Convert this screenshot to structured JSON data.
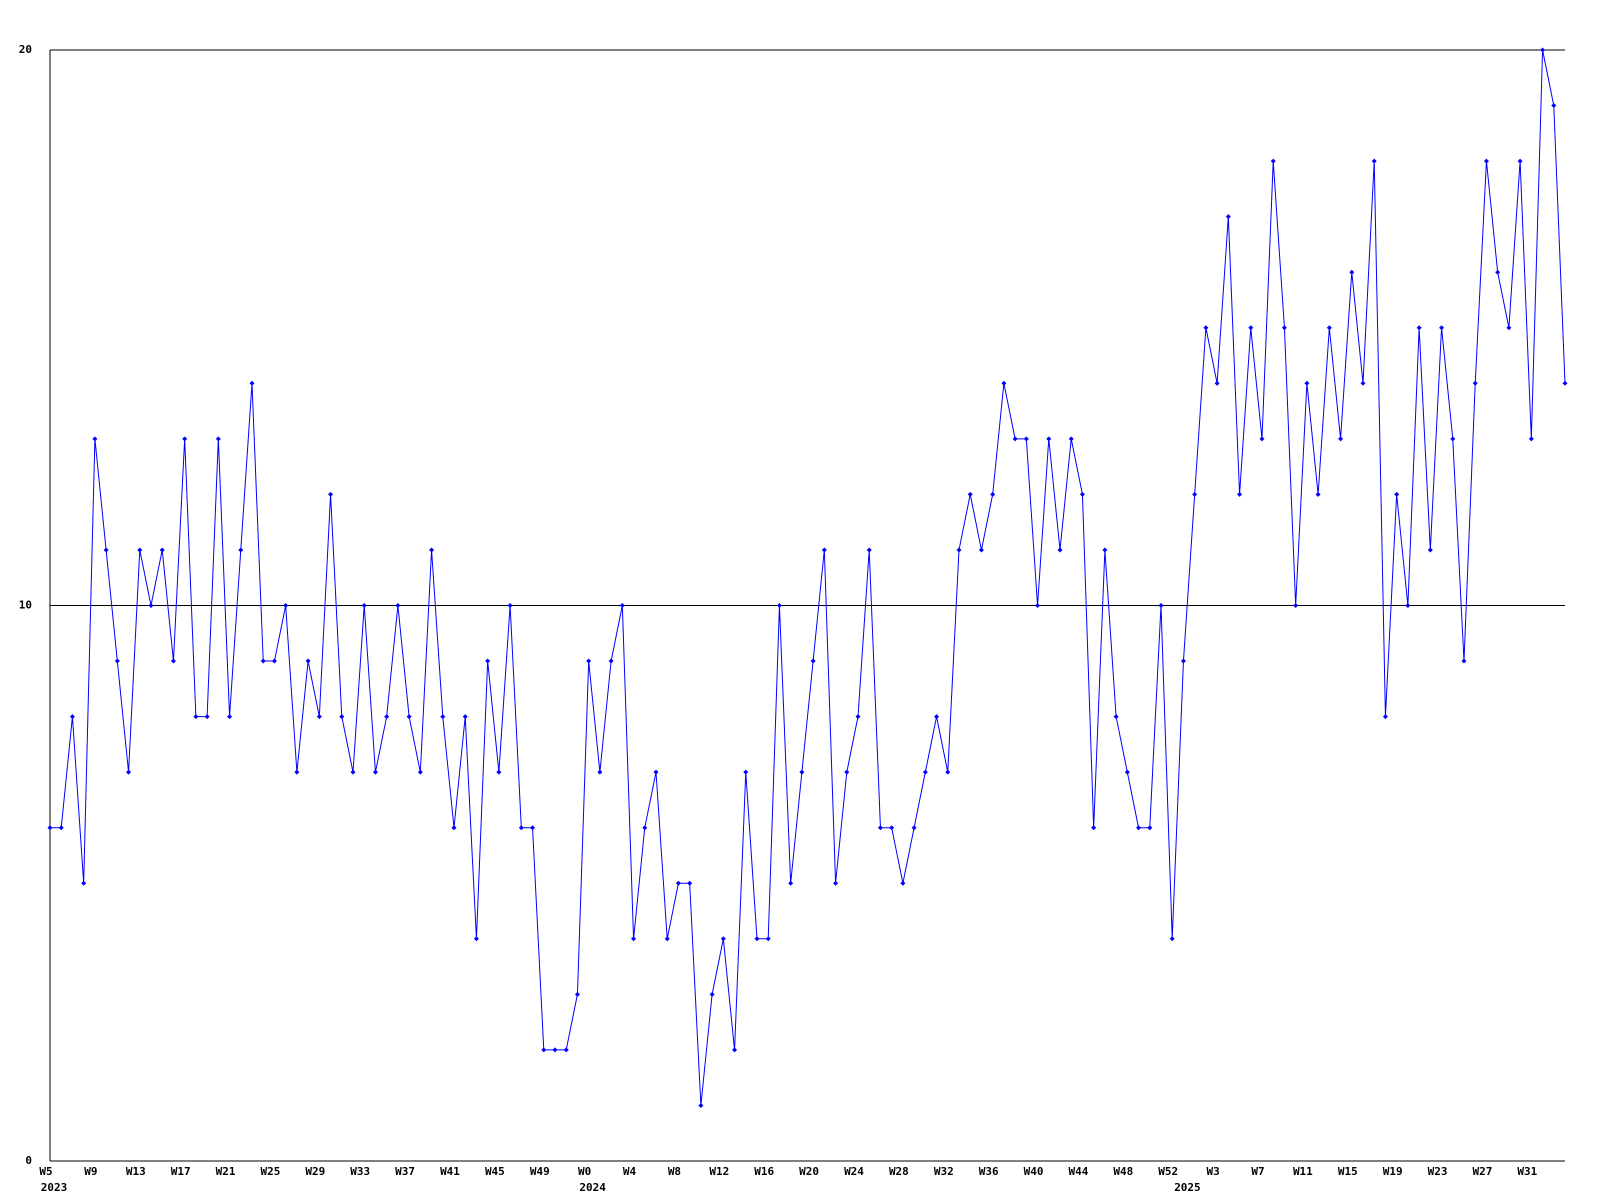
{
  "chart_data": {
    "type": "line",
    "categories": [
      "W5",
      null,
      null,
      null,
      "W9",
      null,
      null,
      null,
      "W13",
      null,
      null,
      null,
      "W17",
      null,
      null,
      null,
      "W21",
      null,
      null,
      null,
      "W25",
      null,
      null,
      null,
      "W29",
      null,
      null,
      null,
      "W33",
      null,
      null,
      null,
      "W37",
      null,
      null,
      null,
      "W41",
      null,
      null,
      null,
      "W45",
      null,
      null,
      null,
      "W49",
      null,
      null,
      null,
      "W0",
      null,
      null,
      null,
      "W4",
      null,
      null,
      null,
      "W8",
      null,
      null,
      null,
      "W12",
      null,
      null,
      null,
      "W16",
      null,
      null,
      null,
      "W20",
      null,
      null,
      null,
      "W24",
      null,
      null,
      null,
      "W28",
      null,
      null,
      null,
      "W32",
      null,
      null,
      null,
      "W36",
      null,
      null,
      null,
      "W40",
      null,
      null,
      null,
      "W44",
      null,
      null,
      null,
      "W48",
      null,
      null,
      null,
      "W52",
      null,
      null,
      null,
      "W3",
      null,
      null,
      null,
      "W7",
      null,
      null,
      null,
      "W11",
      null,
      null,
      null,
      "W15",
      null,
      null,
      null,
      "W19",
      null,
      null,
      null,
      "W23",
      null,
      null,
      null,
      "W27",
      null,
      null,
      null,
      "W31",
      null,
      null,
      null
    ],
    "year_labels": [
      "2023",
      null,
      null,
      null,
      null,
      null,
      null,
      null,
      null,
      null,
      null,
      null,
      null,
      null,
      null,
      null,
      null,
      null,
      null,
      null,
      null,
      null,
      null,
      null,
      null,
      null,
      null,
      null,
      null,
      null,
      null,
      null,
      null,
      null,
      null,
      null,
      null,
      null,
      null,
      null,
      null,
      null,
      null,
      null,
      null,
      null,
      null,
      null,
      "2024",
      null,
      null,
      null,
      null,
      null,
      null,
      null,
      null,
      null,
      null,
      null,
      null,
      null,
      null,
      null,
      null,
      null,
      null,
      null,
      null,
      null,
      null,
      null,
      null,
      null,
      null,
      null,
      null,
      null,
      null,
      null,
      null,
      null,
      null,
      null,
      null,
      null,
      null,
      null,
      null,
      null,
      null,
      null,
      null,
      null,
      null,
      null,
      null,
      null,
      null,
      null,
      null,
      "2025",
      null,
      null,
      null,
      null,
      null,
      null,
      null,
      null,
      null,
      null,
      null,
      null,
      null,
      null,
      null,
      null,
      null,
      null,
      null,
      null,
      null,
      null,
      null,
      null,
      null,
      null,
      null,
      null,
      null,
      null,
      null,
      null,
      null,
      null
    ],
    "values": [
      6,
      6,
      8,
      5,
      13,
      11,
      9,
      7,
      11,
      10,
      11,
      9,
      13,
      8,
      8,
      13,
      8,
      11,
      14,
      9,
      9,
      10,
      7,
      9,
      8,
      12,
      8,
      7,
      10,
      7,
      8,
      10,
      8,
      7,
      11,
      8,
      6,
      8,
      4,
      9,
      7,
      10,
      6,
      6,
      2,
      2,
      2,
      3,
      9,
      7,
      9,
      10,
      4,
      6,
      7,
      4,
      5,
      5,
      1,
      3,
      4,
      2,
      7,
      4,
      4,
      10,
      5,
      7,
      9,
      11,
      5,
      7,
      8,
      11,
      6,
      6,
      5,
      6,
      7,
      8,
      7,
      11,
      12,
      11,
      12,
      14,
      13,
      13,
      10,
      13,
      11,
      13,
      12,
      6,
      11,
      8,
      7,
      6,
      6,
      10,
      4,
      9,
      12,
      15,
      14,
      17,
      12,
      15,
      13,
      18,
      15,
      10,
      14,
      12,
      15,
      13,
      16,
      14,
      18,
      8,
      12,
      10,
      15,
      11,
      15,
      13,
      9,
      14,
      18,
      16,
      15,
      18,
      13,
      20,
      19,
      14
    ],
    "color": "#0000ff",
    "ylim": [
      0,
      20
    ],
    "yticks": [
      0,
      10,
      20
    ],
    "grid": true
  }
}
